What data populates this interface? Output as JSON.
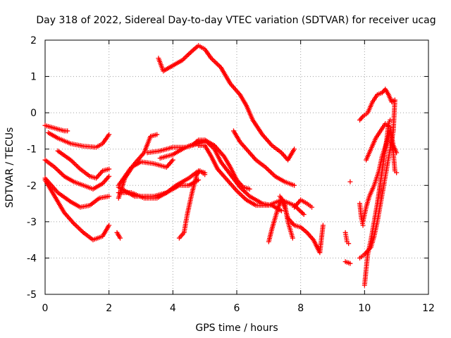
{
  "chart_data": {
    "type": "scatter",
    "title": "Day 318 of 2022, Sidereal Day-to-day VTEC variation (SDTVAR) for receiver ucag",
    "xlabel": "GPS time / hours",
    "ylabel": "SDTVAR / TECUs",
    "xlim": [
      0,
      12
    ],
    "ylim": [
      -5,
      2
    ],
    "xticks": [
      "0",
      "2",
      "4",
      "6",
      "8",
      "10",
      "12"
    ],
    "yticks": [
      "-5",
      "-4",
      "-3",
      "-2",
      "-1",
      "0",
      "1",
      "2"
    ],
    "grid": true,
    "marker": "+",
    "color": "#ff0000",
    "series": [
      {
        "points": [
          [
            0.0,
            -0.35
          ],
          [
            0.2,
            -0.4
          ],
          [
            0.4,
            -0.45
          ],
          [
            0.6,
            -0.5
          ],
          [
            0.7,
            -0.5
          ]
        ]
      },
      {
        "points": [
          [
            0.1,
            -0.55
          ],
          [
            0.4,
            -0.7
          ],
          [
            0.8,
            -0.85
          ],
          [
            1.2,
            -0.92
          ],
          [
            1.6,
            -0.95
          ],
          [
            1.8,
            -0.85
          ],
          [
            2.0,
            -0.6
          ]
        ]
      },
      {
        "points": [
          [
            0.0,
            -1.3
          ],
          [
            0.3,
            -1.5
          ],
          [
            0.6,
            -1.75
          ],
          [
            0.9,
            -1.9
          ],
          [
            1.2,
            -2.0
          ],
          [
            1.5,
            -2.1
          ],
          [
            1.8,
            -1.95
          ],
          [
            2.0,
            -1.75
          ]
        ]
      },
      {
        "points": [
          [
            0.4,
            -1.05
          ],
          [
            0.8,
            -1.3
          ],
          [
            1.1,
            -1.55
          ],
          [
            1.4,
            -1.75
          ],
          [
            1.6,
            -1.8
          ],
          [
            1.8,
            -1.6
          ],
          [
            2.0,
            -1.55
          ]
        ]
      },
      {
        "points": [
          [
            0.0,
            -1.8
          ],
          [
            0.4,
            -2.2
          ],
          [
            0.8,
            -2.45
          ],
          [
            1.1,
            -2.6
          ],
          [
            1.4,
            -2.55
          ],
          [
            1.7,
            -2.35
          ],
          [
            2.0,
            -2.3
          ]
        ]
      },
      {
        "points": [
          [
            0.0,
            -1.85
          ],
          [
            0.3,
            -2.3
          ],
          [
            0.6,
            -2.75
          ],
          [
            0.9,
            -3.05
          ],
          [
            1.2,
            -3.3
          ],
          [
            1.5,
            -3.5
          ],
          [
            1.8,
            -3.4
          ],
          [
            2.0,
            -3.1
          ]
        ]
      },
      {
        "points": [
          [
            2.25,
            -3.3
          ],
          [
            2.35,
            -3.45
          ]
        ]
      },
      {
        "points": [
          [
            2.3,
            -2.35
          ],
          [
            2.5,
            -1.8
          ],
          [
            2.8,
            -1.4
          ],
          [
            3.1,
            -1.1
          ],
          [
            3.3,
            -0.65
          ],
          [
            3.5,
            -0.6
          ]
        ]
      },
      {
        "points": [
          [
            2.3,
            -2.0
          ],
          [
            2.7,
            -1.5
          ],
          [
            3.0,
            -1.35
          ],
          [
            3.4,
            -1.4
          ],
          [
            3.8,
            -1.5
          ],
          [
            4.0,
            -1.3
          ]
        ]
      },
      {
        "points": [
          [
            2.3,
            -2.2
          ],
          [
            2.7,
            -2.2
          ],
          [
            3.1,
            -2.35
          ],
          [
            3.5,
            -2.35
          ],
          [
            3.9,
            -2.15
          ],
          [
            4.2,
            -2.0
          ],
          [
            4.5,
            -2.0
          ],
          [
            4.8,
            -1.85
          ]
        ]
      },
      {
        "points": [
          [
            2.3,
            -2.05
          ],
          [
            2.8,
            -2.3
          ],
          [
            3.4,
            -2.3
          ],
          [
            3.8,
            -2.2
          ],
          [
            4.1,
            -2.0
          ],
          [
            4.5,
            -1.8
          ],
          [
            4.8,
            -1.6
          ],
          [
            5.0,
            -1.65
          ]
        ]
      },
      {
        "points": [
          [
            3.2,
            -1.1
          ],
          [
            3.6,
            -1.05
          ],
          [
            4.0,
            -0.95
          ],
          [
            4.4,
            -0.95
          ],
          [
            4.8,
            -0.85
          ],
          [
            5.0,
            -0.8
          ]
        ]
      },
      {
        "points": [
          [
            3.6,
            -1.25
          ],
          [
            4.0,
            -1.15
          ],
          [
            4.4,
            -0.95
          ],
          [
            4.7,
            -0.85
          ],
          [
            5.0,
            -0.75
          ],
          [
            5.3,
            -0.9
          ],
          [
            5.6,
            -1.2
          ],
          [
            5.8,
            -1.5
          ],
          [
            6.0,
            -1.85
          ],
          [
            6.2,
            -2.05
          ],
          [
            6.4,
            -2.1
          ]
        ]
      },
      {
        "points": [
          [
            4.2,
            -3.45
          ],
          [
            4.35,
            -3.3
          ],
          [
            4.45,
            -2.8
          ],
          [
            4.6,
            -2.2
          ],
          [
            4.75,
            -1.7
          ],
          [
            4.85,
            -1.6
          ],
          [
            5.0,
            -1.7
          ]
        ]
      },
      {
        "points": [
          [
            4.6,
            -0.9
          ],
          [
            4.8,
            -0.75
          ],
          [
            5.0,
            -0.75
          ],
          [
            5.3,
            -1.0
          ],
          [
            5.5,
            -1.35
          ],
          [
            5.8,
            -1.7
          ],
          [
            6.1,
            -2.05
          ],
          [
            6.4,
            -2.3
          ],
          [
            6.8,
            -2.5
          ],
          [
            7.1,
            -2.55
          ],
          [
            7.4,
            -2.7
          ]
        ]
      },
      {
        "points": [
          [
            4.8,
            -0.9
          ],
          [
            5.0,
            -0.9
          ],
          [
            5.2,
            -1.2
          ],
          [
            5.4,
            -1.55
          ],
          [
            5.7,
            -1.85
          ],
          [
            6.0,
            -2.15
          ],
          [
            6.3,
            -2.4
          ],
          [
            6.6,
            -2.55
          ],
          [
            7.0,
            -2.55
          ],
          [
            7.4,
            -2.4
          ],
          [
            7.8,
            -2.55
          ],
          [
            8.1,
            -2.8
          ]
        ]
      },
      {
        "points": [
          [
            3.55,
            1.5
          ],
          [
            3.7,
            1.15
          ],
          [
            4.0,
            1.3
          ],
          [
            4.3,
            1.45
          ],
          [
            4.6,
            1.7
          ],
          [
            4.8,
            1.85
          ],
          [
            5.0,
            1.75
          ],
          [
            5.2,
            1.5
          ],
          [
            5.5,
            1.25
          ],
          [
            5.8,
            0.8
          ],
          [
            6.1,
            0.5
          ],
          [
            6.3,
            0.2
          ],
          [
            6.5,
            -0.2
          ],
          [
            6.8,
            -0.6
          ],
          [
            7.1,
            -0.9
          ],
          [
            7.4,
            -1.1
          ],
          [
            7.6,
            -1.3
          ],
          [
            7.8,
            -1.0
          ]
        ]
      },
      {
        "points": [
          [
            5.9,
            -0.5
          ],
          [
            6.1,
            -0.8
          ],
          [
            6.3,
            -1.0
          ],
          [
            6.6,
            -1.3
          ],
          [
            6.9,
            -1.5
          ],
          [
            7.2,
            -1.75
          ],
          [
            7.5,
            -1.9
          ],
          [
            7.8,
            -2.0
          ]
        ]
      },
      {
        "points": [
          [
            7.0,
            -3.55
          ],
          [
            7.1,
            -3.2
          ],
          [
            7.2,
            -2.9
          ],
          [
            7.3,
            -2.6
          ],
          [
            7.4,
            -2.4
          ],
          [
            7.5,
            -2.6
          ],
          [
            7.6,
            -2.9
          ],
          [
            7.8,
            -3.1
          ],
          [
            8.0,
            -3.15
          ],
          [
            8.2,
            -3.3
          ],
          [
            8.4,
            -3.5
          ],
          [
            8.6,
            -3.85
          ],
          [
            8.7,
            -3.1
          ]
        ]
      },
      {
        "points": [
          [
            7.35,
            -2.3
          ],
          [
            7.5,
            -2.5
          ],
          [
            7.6,
            -3.0
          ],
          [
            7.75,
            -3.45
          ]
        ]
      },
      {
        "points": [
          [
            7.8,
            -2.6
          ],
          [
            8.0,
            -2.4
          ],
          [
            8.2,
            -2.5
          ],
          [
            8.35,
            -2.6
          ]
        ]
      },
      {
        "points": [
          [
            9.4,
            -3.3
          ],
          [
            9.45,
            -3.55
          ],
          [
            9.5,
            -3.6
          ]
        ]
      },
      {
        "points": [
          [
            9.4,
            -4.1
          ],
          [
            9.55,
            -4.15
          ]
        ]
      },
      {
        "points": [
          [
            9.55,
            -1.9
          ]
        ]
      },
      {
        "points": [
          [
            9.85,
            -2.5
          ],
          [
            9.9,
            -2.9
          ],
          [
            9.95,
            -3.1
          ]
        ]
      },
      {
        "points": [
          [
            9.85,
            -4.0
          ],
          [
            10.0,
            -3.9
          ],
          [
            10.2,
            -3.7
          ],
          [
            10.3,
            -3.4
          ],
          [
            10.4,
            -3.0
          ],
          [
            10.5,
            -2.5
          ],
          [
            10.6,
            -2.0
          ],
          [
            10.7,
            -1.5
          ],
          [
            10.8,
            -1.0
          ],
          [
            10.9,
            -0.5
          ],
          [
            10.95,
            0.35
          ]
        ]
      },
      {
        "points": [
          [
            10.0,
            -4.75
          ],
          [
            10.05,
            -4.3
          ],
          [
            10.1,
            -3.9
          ],
          [
            10.2,
            -3.5
          ],
          [
            10.3,
            -3.0
          ],
          [
            10.4,
            -2.5
          ],
          [
            10.5,
            -1.9
          ],
          [
            10.6,
            -1.3
          ],
          [
            10.7,
            -0.7
          ],
          [
            10.75,
            -0.3
          ],
          [
            10.8,
            -0.2
          ]
        ]
      },
      {
        "points": [
          [
            9.95,
            -3.0
          ],
          [
            10.05,
            -2.6
          ],
          [
            10.15,
            -2.3
          ],
          [
            10.3,
            -2.0
          ],
          [
            10.45,
            -1.6
          ],
          [
            10.55,
            -1.2
          ],
          [
            10.7,
            -0.8
          ],
          [
            10.8,
            -0.5
          ],
          [
            10.9,
            -1.1
          ],
          [
            10.95,
            -1.6
          ],
          [
            11.0,
            -1.65
          ]
        ]
      },
      {
        "points": [
          [
            9.85,
            -0.2
          ],
          [
            9.95,
            -0.1
          ],
          [
            10.1,
            0.0
          ],
          [
            10.25,
            0.3
          ],
          [
            10.4,
            0.5
          ],
          [
            10.55,
            0.55
          ],
          [
            10.65,
            0.65
          ],
          [
            10.75,
            0.5
          ],
          [
            10.85,
            0.3
          ],
          [
            10.95,
            0.35
          ]
        ]
      },
      {
        "points": [
          [
            10.05,
            -1.3
          ],
          [
            10.2,
            -1.0
          ],
          [
            10.35,
            -0.7
          ],
          [
            10.5,
            -0.5
          ],
          [
            10.65,
            -0.3
          ],
          [
            10.8,
            -0.4
          ],
          [
            10.9,
            -0.9
          ],
          [
            11.0,
            -1.1
          ]
        ]
      }
    ]
  }
}
